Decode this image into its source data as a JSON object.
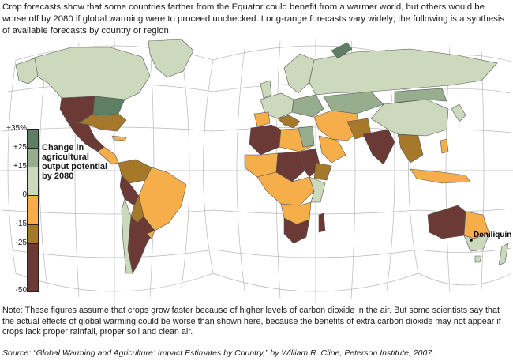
{
  "intro": "Crop forecasts show that some countries farther from the Equator could benefit from a warmer world, but others would be worse off by 2080 if global warming were to proceed unchecked. Long-range forecasts vary widely; the following is a synthesis of available forecasts by country or region.",
  "legend": {
    "title": "Change in agricultural output potential by 2080",
    "ticks": [
      {
        "label": "+35%",
        "value": 35
      },
      {
        "label": "+25",
        "value": 25
      },
      {
        "label": "+15",
        "value": 15
      },
      {
        "label": "0",
        "value": 0
      },
      {
        "label": "-15",
        "value": -15
      },
      {
        "label": "-25",
        "value": -25
      },
      {
        "label": "-50",
        "value": -50
      }
    ],
    "bands": [
      {
        "from": 35,
        "to": 25,
        "color": "#5e7f63"
      },
      {
        "from": 25,
        "to": 15,
        "color": "#97ae8e"
      },
      {
        "from": 15,
        "to": 0,
        "color": "#ccd9bd"
      },
      {
        "from": 0,
        "to": -15,
        "color": "#f5ae4a"
      },
      {
        "from": -15,
        "to": -25,
        "color": "#a6792a"
      },
      {
        "from": -25,
        "to": -50,
        "color": "#6c3a36"
      }
    ]
  },
  "map": {
    "ocean_color": "#ffffff",
    "graticule_color": "#b8b8b8",
    "city": "Deniliquin"
  },
  "note": "Note: These figures assume that crops grow faster because of higher levels of carbon dioxide in the air. But some scientists say that the actual effects of global warming could be worse than shown here, because the benefits of extra carbon dioxide may not appear if crops lack proper rainfall, proper soil and clean air.",
  "source": "Source: “Global Warming and Agriculture: Impact Estimates by Country,” by William R. Cline, Peterson Institute, 2007."
}
